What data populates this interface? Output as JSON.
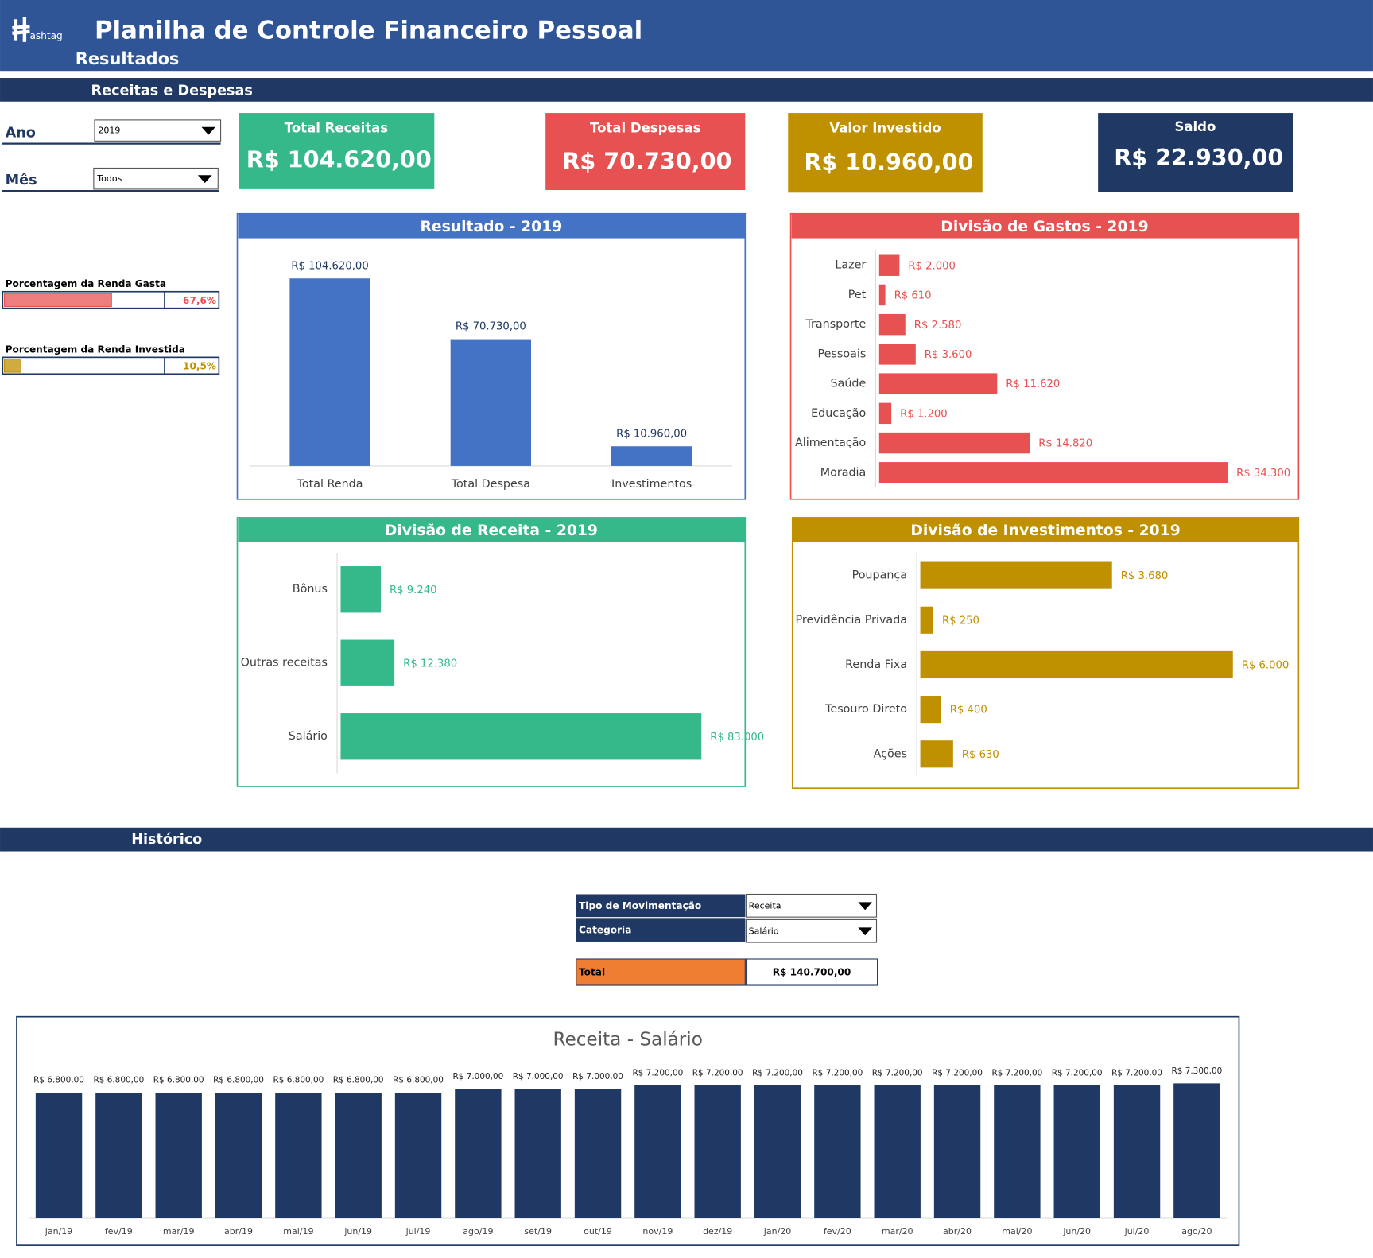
{
  "header": {
    "logo": "ashtag",
    "title": "Planilha de Controle Financeiro Pessoal",
    "subtitle": "Resultados"
  },
  "section": "Receitas e Despesas",
  "filters": [
    {
      "label": "Ano",
      "value": "2019"
    },
    {
      "label": "Mês",
      "value": "Todos"
    }
  ],
  "cards": [
    {
      "title": "Total Receitas",
      "value": "R$ 104.620,00"
    },
    {
      "title": "Total Despesas",
      "value": "R$ 70.730,00"
    },
    {
      "title": "Valor Investido",
      "value": "R$ 10.960,00"
    },
    {
      "title": "Saldo",
      "value": "R$ 22.930,00"
    }
  ],
  "gauges": [
    {
      "label": "Porcentagem da Renda Gasta",
      "value": 67.6,
      "value_label": "67,6%",
      "xlim": [
        0,
        100
      ],
      "color": "#e85151"
    },
    {
      "label": "Porcentagem da Renda Investida",
      "value": 10.5,
      "value_label": "10,5%",
      "xlim": [
        0,
        100
      ],
      "color": "#bf9000"
    }
  ],
  "chart_data": [
    {
      "type": "bar",
      "orientation": "vertical",
      "title": "Resultado - 2019",
      "color": "#4472c4",
      "categories": [
        "Total Renda",
        "Total Despesa",
        "Investimentos"
      ],
      "values": [
        104620,
        70730,
        10960
      ],
      "value_labels": [
        "R$ 104.620,00",
        "R$ 70.730,00",
        "R$ 10.960,00"
      ]
    },
    {
      "type": "bar",
      "orientation": "horizontal",
      "title": "Divisão de Gastos - 2019",
      "color": "#e85151",
      "categories": [
        "Lazer",
        "Pet",
        "Transporte",
        "Pessoais",
        "Saúde",
        "Educação",
        "Alimentação",
        "Moradia"
      ],
      "values": [
        2000,
        610,
        2580,
        3600,
        11620,
        1200,
        14820,
        34300
      ],
      "value_labels": [
        "R$ 2.000",
        "R$ 610",
        "R$ 2.580",
        "R$ 3.600",
        "R$ 11.620",
        "R$ 1.200",
        "R$ 14.820",
        "R$ 34.300"
      ]
    },
    {
      "type": "bar",
      "orientation": "horizontal",
      "title": "Divisão de Receita - 2019",
      "color": "#35b98b",
      "categories": [
        "Bônus",
        "Outras receitas",
        "Salário"
      ],
      "values": [
        9240,
        12380,
        83000
      ],
      "value_labels": [
        "R$ 9.240",
        "R$ 12.380",
        "R$ 83.000"
      ]
    },
    {
      "type": "bar",
      "orientation": "horizontal",
      "title": "Divisão de Investimentos - 2019",
      "color": "#bf9000",
      "categories": [
        "Poupança",
        "Previdência Privada",
        "Renda Fixa",
        "Tesouro Direto",
        "Ações"
      ],
      "values": [
        3680,
        250,
        6000,
        400,
        630
      ],
      "value_labels": [
        "R$ 3.680",
        "R$ 250",
        "R$ 6.000",
        "R$ 400",
        "R$ 630"
      ]
    },
    {
      "type": "bar",
      "orientation": "vertical",
      "title": "Receita - Salário",
      "color": "#1f3864",
      "categories": [
        "jan/19",
        "fev/19",
        "mar/19",
        "abr/19",
        "mai/19",
        "jun/19",
        "jul/19",
        "ago/19",
        "set/19",
        "out/19",
        "nov/19",
        "dez/19",
        "jan/20",
        "fev/20",
        "mar/20",
        "abr/20",
        "mai/20",
        "jun/20",
        "jul/20",
        "ago/20"
      ],
      "values": [
        6800,
        6800,
        6800,
        6800,
        6800,
        6800,
        6800,
        7000,
        7000,
        7000,
        7200,
        7200,
        7200,
        7200,
        7200,
        7200,
        7200,
        7200,
        7200,
        7300
      ],
      "value_labels": [
        "R$ 6.800,00",
        "R$ 6.800,00",
        "R$ 6.800,00",
        "R$ 6.800,00",
        "R$ 6.800,00",
        "R$ 6.800,00",
        "R$ 6.800,00",
        "R$ 7.000,00",
        "R$ 7.000,00",
        "R$ 7.000,00",
        "R$ 7.200,00",
        "R$ 7.200,00",
        "R$ 7.200,00",
        "R$ 7.200,00",
        "R$ 7.200,00",
        "R$ 7.200,00",
        "R$ 7.200,00",
        "R$ 7.200,00",
        "R$ 7.200,00",
        "R$ 7.300,00"
      ]
    }
  ],
  "history": {
    "title": "Histórico",
    "form": [
      {
        "label": "Tipo de Movimentação",
        "value": "Receita"
      },
      {
        "label": "Categoria",
        "value": "Salário"
      }
    ],
    "total": {
      "label": "Total",
      "value": "R$ 140.700,00"
    }
  }
}
